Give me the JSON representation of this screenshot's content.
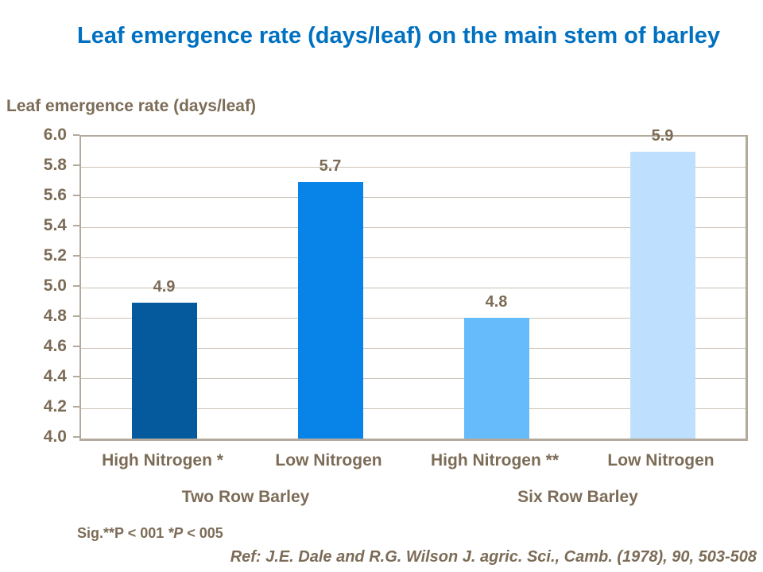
{
  "slide": {
    "title": "Leaf emergence rate (days/leaf) on the main stem of barley",
    "sig_note": {
      "prefix": "Sig.**P < 001 ",
      "italic": "*P",
      "suffix": " < 005",
      "full_text": "Sig.**P < 001 *P < 005"
    },
    "reference": "Ref: J.E. Dale and R.G. Wilson J. agric. Sci., Camb. (1978), 90, 503-508"
  },
  "colors": {
    "title_blue": "#0070C0",
    "text_brown": "#7C6C57",
    "gridline": "#CCC2B6",
    "axis_border": "#B3A99C",
    "bar_colors": [
      "#05599D",
      "#0884E8",
      "#66BBFA",
      "#BEE0FE"
    ]
  },
  "chart_data": {
    "type": "bar",
    "title": "",
    "ylabel": "Leaf emergence rate (days/leaf)",
    "xlabel": "",
    "categories": [
      "High Nitrogen *",
      "Low Nitrogen",
      "High Nitrogen **",
      "Low Nitrogen"
    ],
    "values": [
      4.9,
      5.7,
      4.8,
      5.9
    ],
    "data_labels": [
      "4.9",
      "5.7",
      "4.8",
      "5.9"
    ],
    "bar_colors": [
      "#05599D",
      "#0884E8",
      "#66BBFA",
      "#BEE0FE"
    ],
    "groups": [
      {
        "label": "Two Row Barley",
        "category_indexes": [
          0,
          1
        ]
      },
      {
        "label": "Six Row Barley",
        "category_indexes": [
          2,
          3
        ]
      }
    ],
    "ylim": [
      4.0,
      6.0
    ],
    "ytick_step": 0.2,
    "ytick_labels": [
      "6.0",
      "5.8",
      "5.6",
      "5.4",
      "5.2",
      "5.0",
      "4.8",
      "4.6",
      "4.4",
      "4.2",
      "4.0"
    ],
    "grid": true,
    "legend_position": "none"
  }
}
